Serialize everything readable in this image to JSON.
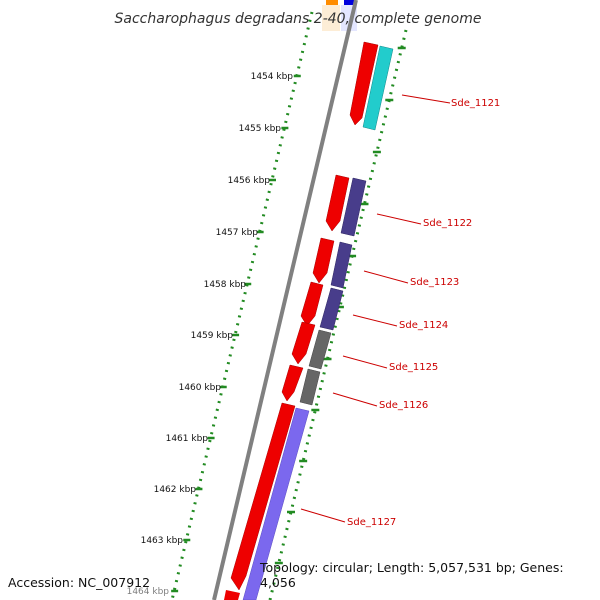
{
  "title": "Saccharophagus degradans 2-40, complete genome",
  "ruler": [
    {
      "label": "1454 kbp"
    },
    {
      "label": "1455 kbp"
    },
    {
      "label": "1456 kbp"
    },
    {
      "label": "1457 kbp"
    },
    {
      "label": "1458 kbp"
    },
    {
      "label": "1459 kbp"
    },
    {
      "label": "1460 kbp"
    },
    {
      "label": "1461 kbp"
    },
    {
      "label": "1462 kbp"
    },
    {
      "label": "1463 kbp"
    },
    {
      "label": "1464 kbp"
    }
  ],
  "genes": [
    {
      "label": "Sde_1121"
    },
    {
      "label": "Sde_1122"
    },
    {
      "label": "Sde_1123"
    },
    {
      "label": "Sde_1124"
    },
    {
      "label": "Sde_1125"
    },
    {
      "label": "Sde_1126"
    },
    {
      "label": "Sde_1127"
    }
  ],
  "colors": {
    "cds": "#ee0000",
    "teal": "#22cccc",
    "navy": "#483d8b",
    "gray": "#666666",
    "lavender": "#7b68ee",
    "dots": "#228b22",
    "backbone": "#808080",
    "label": "#cc0000"
  },
  "footer": {
    "accession": "Accession: NC_007912",
    "topology": "Topology: circular; Length: 5,057,531 bp; Genes: 4,056"
  }
}
